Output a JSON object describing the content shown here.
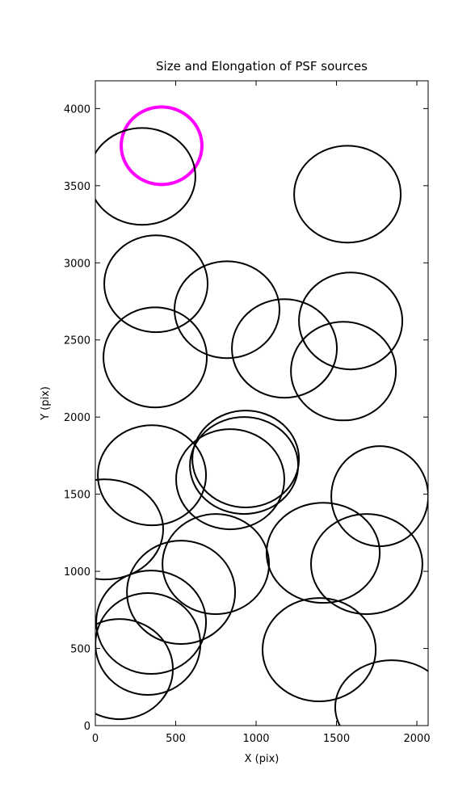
{
  "chart_data": {
    "type": "ellipse",
    "title": "Size and Elongation of PSF sources",
    "x_label": "X (pix)",
    "y_label": "Y (pix)",
    "xlim": [
      0,
      2070
    ],
    "ylim": [
      0,
      4180
    ],
    "xticks": [
      0,
      500,
      1000,
      1500,
      2000
    ],
    "yticks": [
      0,
      500,
      1000,
      1500,
      2000,
      2500,
      3000,
      3500,
      4000
    ],
    "x": [
      412,
      291,
      1568,
      377,
      819,
      1588,
      1176,
      372,
      1543,
      352,
      935,
      925,
      839,
      1769,
      60,
      1417,
      1688,
      749,
      533,
      347,
      327,
      1392,
      151,
      1844
    ],
    "y": [
      3759,
      3560,
      3445,
      2864,
      2696,
      2623,
      2445,
      2387,
      2298,
      1623,
      1728,
      1686,
      1597,
      1487,
      1272,
      1120,
      1047,
      1047,
      864,
      670,
      529,
      492,
      366,
      120
    ],
    "width": [
      502,
      663,
      663,
      643,
      653,
      643,
      653,
      643,
      653,
      673,
      663,
      673,
      673,
      603,
      724,
      704,
      693,
      663,
      673,
      683,
      653,
      704,
      663,
      704
    ],
    "height": [
      503,
      628,
      628,
      628,
      628,
      628,
      639,
      649,
      639,
      649,
      628,
      628,
      649,
      649,
      649,
      649,
      649,
      649,
      670,
      670,
      660,
      670,
      649,
      607
    ],
    "colors": [
      "#ff00ff",
      "#000000",
      "#000000",
      "#000000",
      "#000000",
      "#000000",
      "#000000",
      "#000000",
      "#000000",
      "#000000",
      "#000000",
      "#000000",
      "#000000",
      "#000000",
      "#000000",
      "#000000",
      "#000000",
      "#000000",
      "#000000",
      "#000000",
      "#000000",
      "#000000",
      "#000000",
      "#000000"
    ]
  }
}
